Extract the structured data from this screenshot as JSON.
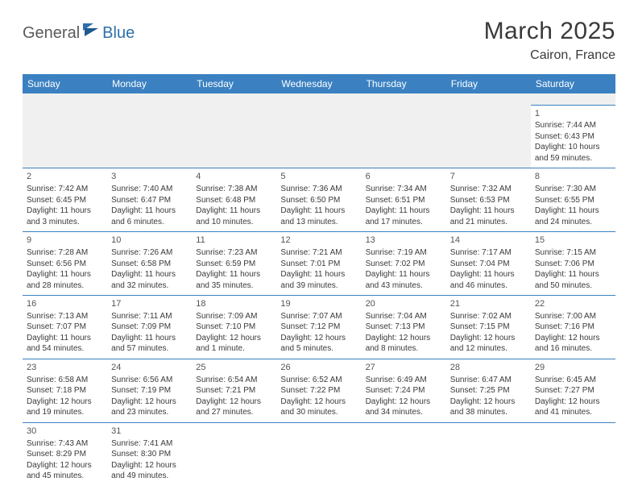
{
  "brand": {
    "part1": "General",
    "part2": "Blue"
  },
  "title": "March 2025",
  "location": "Cairon, France",
  "colors": {
    "header_bg": "#3b81c2",
    "header_text": "#ffffff",
    "grid_line": "#3b81c2",
    "body_text": "#3a3a3a",
    "empty_bg": "#f0f0f0",
    "logo_gray": "#5b5b5b",
    "logo_blue": "#2f6fa8"
  },
  "weekdays": [
    "Sunday",
    "Monday",
    "Tuesday",
    "Wednesday",
    "Thursday",
    "Friday",
    "Saturday"
  ],
  "weeks": [
    [
      null,
      null,
      null,
      null,
      null,
      null,
      {
        "n": "1",
        "sr": "Sunrise: 7:44 AM",
        "ss": "Sunset: 6:43 PM",
        "dl": "Daylight: 10 hours and 59 minutes."
      }
    ],
    [
      {
        "n": "2",
        "sr": "Sunrise: 7:42 AM",
        "ss": "Sunset: 6:45 PM",
        "dl": "Daylight: 11 hours and 3 minutes."
      },
      {
        "n": "3",
        "sr": "Sunrise: 7:40 AM",
        "ss": "Sunset: 6:47 PM",
        "dl": "Daylight: 11 hours and 6 minutes."
      },
      {
        "n": "4",
        "sr": "Sunrise: 7:38 AM",
        "ss": "Sunset: 6:48 PM",
        "dl": "Daylight: 11 hours and 10 minutes."
      },
      {
        "n": "5",
        "sr": "Sunrise: 7:36 AM",
        "ss": "Sunset: 6:50 PM",
        "dl": "Daylight: 11 hours and 13 minutes."
      },
      {
        "n": "6",
        "sr": "Sunrise: 7:34 AM",
        "ss": "Sunset: 6:51 PM",
        "dl": "Daylight: 11 hours and 17 minutes."
      },
      {
        "n": "7",
        "sr": "Sunrise: 7:32 AM",
        "ss": "Sunset: 6:53 PM",
        "dl": "Daylight: 11 hours and 21 minutes."
      },
      {
        "n": "8",
        "sr": "Sunrise: 7:30 AM",
        "ss": "Sunset: 6:55 PM",
        "dl": "Daylight: 11 hours and 24 minutes."
      }
    ],
    [
      {
        "n": "9",
        "sr": "Sunrise: 7:28 AM",
        "ss": "Sunset: 6:56 PM",
        "dl": "Daylight: 11 hours and 28 minutes."
      },
      {
        "n": "10",
        "sr": "Sunrise: 7:26 AM",
        "ss": "Sunset: 6:58 PM",
        "dl": "Daylight: 11 hours and 32 minutes."
      },
      {
        "n": "11",
        "sr": "Sunrise: 7:23 AM",
        "ss": "Sunset: 6:59 PM",
        "dl": "Daylight: 11 hours and 35 minutes."
      },
      {
        "n": "12",
        "sr": "Sunrise: 7:21 AM",
        "ss": "Sunset: 7:01 PM",
        "dl": "Daylight: 11 hours and 39 minutes."
      },
      {
        "n": "13",
        "sr": "Sunrise: 7:19 AM",
        "ss": "Sunset: 7:02 PM",
        "dl": "Daylight: 11 hours and 43 minutes."
      },
      {
        "n": "14",
        "sr": "Sunrise: 7:17 AM",
        "ss": "Sunset: 7:04 PM",
        "dl": "Daylight: 11 hours and 46 minutes."
      },
      {
        "n": "15",
        "sr": "Sunrise: 7:15 AM",
        "ss": "Sunset: 7:06 PM",
        "dl": "Daylight: 11 hours and 50 minutes."
      }
    ],
    [
      {
        "n": "16",
        "sr": "Sunrise: 7:13 AM",
        "ss": "Sunset: 7:07 PM",
        "dl": "Daylight: 11 hours and 54 minutes."
      },
      {
        "n": "17",
        "sr": "Sunrise: 7:11 AM",
        "ss": "Sunset: 7:09 PM",
        "dl": "Daylight: 11 hours and 57 minutes."
      },
      {
        "n": "18",
        "sr": "Sunrise: 7:09 AM",
        "ss": "Sunset: 7:10 PM",
        "dl": "Daylight: 12 hours and 1 minute."
      },
      {
        "n": "19",
        "sr": "Sunrise: 7:07 AM",
        "ss": "Sunset: 7:12 PM",
        "dl": "Daylight: 12 hours and 5 minutes."
      },
      {
        "n": "20",
        "sr": "Sunrise: 7:04 AM",
        "ss": "Sunset: 7:13 PM",
        "dl": "Daylight: 12 hours and 8 minutes."
      },
      {
        "n": "21",
        "sr": "Sunrise: 7:02 AM",
        "ss": "Sunset: 7:15 PM",
        "dl": "Daylight: 12 hours and 12 minutes."
      },
      {
        "n": "22",
        "sr": "Sunrise: 7:00 AM",
        "ss": "Sunset: 7:16 PM",
        "dl": "Daylight: 12 hours and 16 minutes."
      }
    ],
    [
      {
        "n": "23",
        "sr": "Sunrise: 6:58 AM",
        "ss": "Sunset: 7:18 PM",
        "dl": "Daylight: 12 hours and 19 minutes."
      },
      {
        "n": "24",
        "sr": "Sunrise: 6:56 AM",
        "ss": "Sunset: 7:19 PM",
        "dl": "Daylight: 12 hours and 23 minutes."
      },
      {
        "n": "25",
        "sr": "Sunrise: 6:54 AM",
        "ss": "Sunset: 7:21 PM",
        "dl": "Daylight: 12 hours and 27 minutes."
      },
      {
        "n": "26",
        "sr": "Sunrise: 6:52 AM",
        "ss": "Sunset: 7:22 PM",
        "dl": "Daylight: 12 hours and 30 minutes."
      },
      {
        "n": "27",
        "sr": "Sunrise: 6:49 AM",
        "ss": "Sunset: 7:24 PM",
        "dl": "Daylight: 12 hours and 34 minutes."
      },
      {
        "n": "28",
        "sr": "Sunrise: 6:47 AM",
        "ss": "Sunset: 7:25 PM",
        "dl": "Daylight: 12 hours and 38 minutes."
      },
      {
        "n": "29",
        "sr": "Sunrise: 6:45 AM",
        "ss": "Sunset: 7:27 PM",
        "dl": "Daylight: 12 hours and 41 minutes."
      }
    ],
    [
      {
        "n": "30",
        "sr": "Sunrise: 7:43 AM",
        "ss": "Sunset: 8:29 PM",
        "dl": "Daylight: 12 hours and 45 minutes."
      },
      {
        "n": "31",
        "sr": "Sunrise: 7:41 AM",
        "ss": "Sunset: 8:30 PM",
        "dl": "Daylight: 12 hours and 49 minutes."
      },
      null,
      null,
      null,
      null,
      null
    ]
  ]
}
